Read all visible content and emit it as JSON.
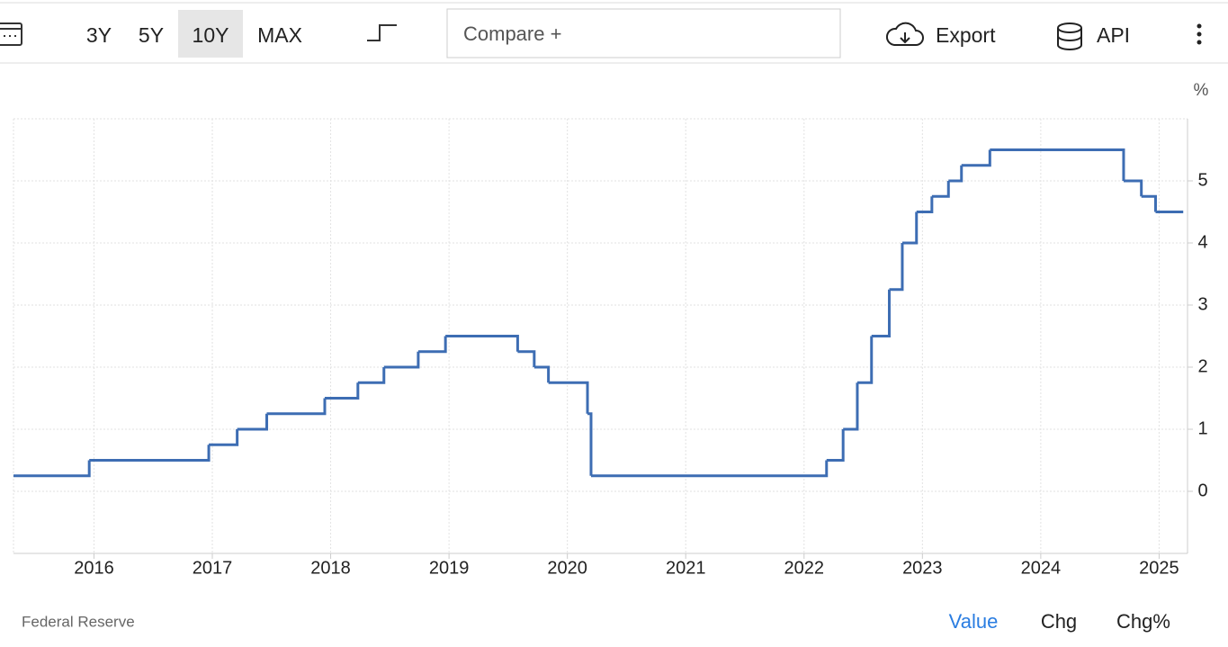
{
  "toolbar": {
    "ranges": [
      "3Y",
      "5Y",
      "10Y",
      "MAX"
    ],
    "compare": "Compare +",
    "export": "Export",
    "api": "API"
  },
  "footer": {
    "source": "Federal Reserve",
    "views": [
      "Value",
      "Chg",
      "Chg%"
    ]
  },
  "chart_data": {
    "type": "line",
    "step": "after",
    "unit": "%",
    "color": "#3d6db3",
    "grid": true,
    "x": [
      2015.32,
      2015.96,
      2016.97,
      2017.21,
      2017.46,
      2017.95,
      2018.23,
      2018.45,
      2018.74,
      2018.97,
      2019.58,
      2019.72,
      2019.84,
      2020.17,
      2020.2,
      2022.19,
      2022.33,
      2022.45,
      2022.57,
      2022.72,
      2022.83,
      2022.95,
      2023.08,
      2023.22,
      2023.33,
      2023.57,
      2024.7,
      2024.85,
      2024.97,
      2025.2
    ],
    "values": [
      0.25,
      0.5,
      0.75,
      1,
      1.25,
      1.5,
      1.75,
      2,
      2.25,
      2.5,
      2.25,
      2,
      1.75,
      1.25,
      0.25,
      0.5,
      1,
      1.75,
      2.5,
      3.25,
      4,
      4.5,
      4.75,
      5,
      5.25,
      5.5,
      5,
      4.75,
      4.5,
      4.5
    ],
    "xlim": [
      2015.32,
      2025.24
    ],
    "xticks": [
      2016,
      2017,
      2018,
      2019,
      2020,
      2021,
      2022,
      2023,
      2024,
      2025
    ],
    "ylim": [
      -1,
      6
    ],
    "yticks": [
      0,
      1,
      2,
      3,
      4,
      5
    ]
  }
}
